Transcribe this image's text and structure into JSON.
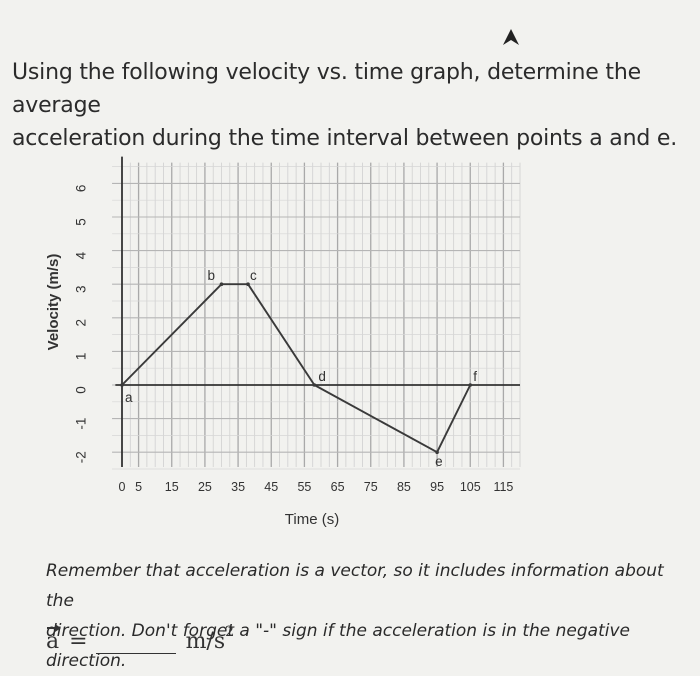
{
  "question": {
    "line1": "Using the following velocity vs. time graph, determine the average",
    "line2": "acceleration during the time interval between points a and e."
  },
  "note": {
    "line1": "Remember that acceleration is a vector, so it includes information about the",
    "line2": "direction.  Don't forget a \"-\" sign if the acceleration is in the negative direction."
  },
  "answer": {
    "symbol": "a",
    "equals": "=",
    "value": "",
    "unit": "m/s",
    "unit_exp": "2"
  },
  "chart_data": {
    "type": "line",
    "title": "",
    "xlabel": "Time (s)",
    "ylabel": "Velocity (m/s)",
    "x_ticks": [
      "0",
      "5",
      "15",
      "25",
      "35",
      "45",
      "55",
      "65",
      "75",
      "85",
      "95",
      "105",
      "115"
    ],
    "y_ticks": [
      "-2",
      "-1",
      "0",
      "1",
      "2",
      "3",
      "4",
      "5",
      "6"
    ],
    "xlim": [
      0,
      120
    ],
    "ylim": [
      -2.5,
      6.5
    ],
    "grid": true,
    "points": [
      {
        "label": "a",
        "x": 0,
        "y": 0
      },
      {
        "label": "b",
        "x": 30,
        "y": 3
      },
      {
        "label": "c",
        "x": 38,
        "y": 3
      },
      {
        "label": "d",
        "x": 58,
        "y": 0
      },
      {
        "label": "e",
        "x": 95,
        "y": -2
      },
      {
        "label": "f",
        "x": 105,
        "y": 0
      }
    ]
  }
}
